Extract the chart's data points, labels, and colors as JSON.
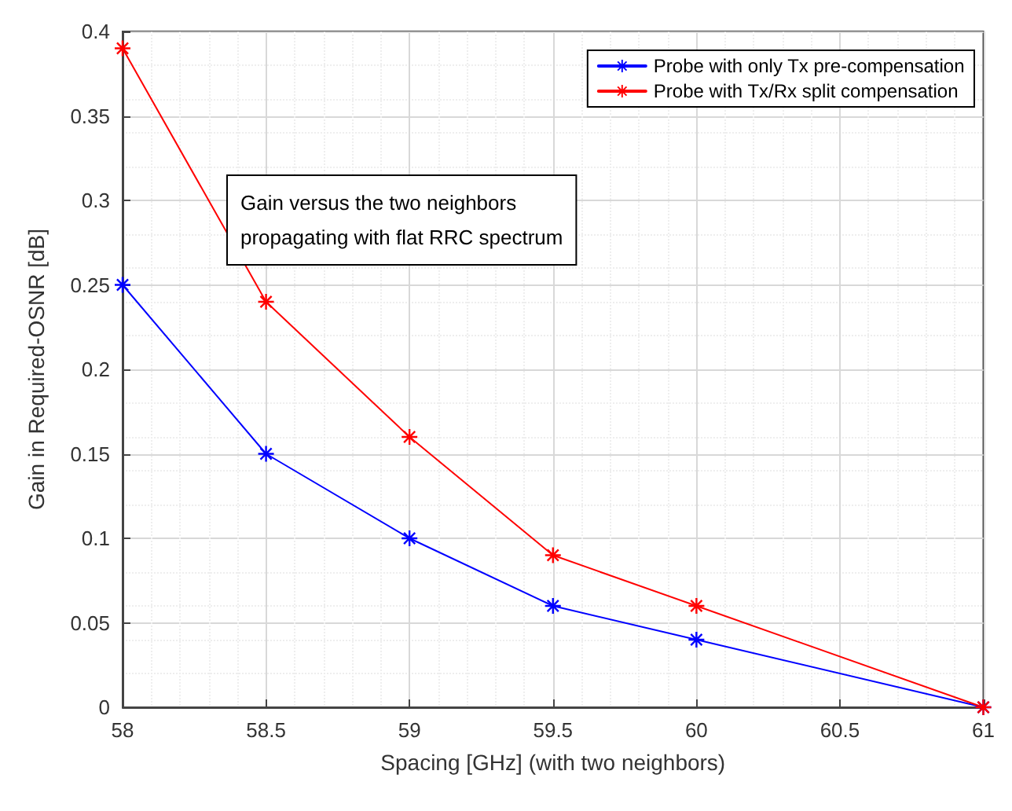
{
  "chart_data": {
    "type": "line",
    "xlabel": "Spacing [GHz] (with two neighbors)",
    "ylabel": "Gain in Required-OSNR [dB]",
    "x": [
      58,
      58.5,
      59,
      59.5,
      60,
      61
    ],
    "series": [
      {
        "name": "Probe with only Tx pre-compensation",
        "color": "#0000ff",
        "values": [
          0.25,
          0.15,
          0.1,
          0.06,
          0.04,
          0
        ]
      },
      {
        "name": "Probe with Tx/Rx split compensation",
        "color": "#ff0000",
        "values": [
          0.39,
          0.24,
          0.16,
          0.09,
          0.06,
          0
        ]
      }
    ],
    "xlim": [
      58,
      61
    ],
    "xticks": [
      58,
      58.5,
      59,
      59.5,
      60,
      60.5,
      61
    ],
    "ylim": [
      0,
      0.4
    ],
    "yticks": [
      0,
      0.05,
      0.1,
      0.15,
      0.2,
      0.25,
      0.3,
      0.35,
      0.4
    ],
    "annotations": [
      "Gain versus the two neighbors\npropagating with flat RRC spectrum"
    ],
    "grid": true,
    "legend": "top right",
    "marker": "star",
    "line_style": "solid"
  }
}
